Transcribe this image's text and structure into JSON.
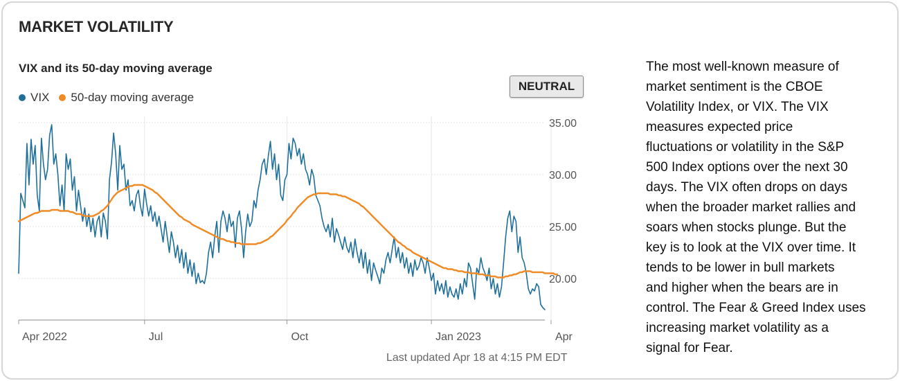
{
  "card": {
    "title": "MARKET VOLATILITY",
    "subtitle": "VIX and its 50-day moving average",
    "badge": "NEUTRAL",
    "updated": "Last updated Apr 18 at 4:15 PM EDT"
  },
  "description_lines": [
    "The most well-known measure of",
    "market sentiment is the CBOE",
    "Volatility Index, or VIX. The VIX",
    "measures expected price",
    "fluctuations or volatility in the S&P",
    "500 Index options over the next 30",
    "days. The VIX often drops on days",
    "when the broader market rallies and",
    "soars when stocks plunge. But the",
    "key is to look at the VIX over time. It",
    "tends to be lower in bull markets",
    "and higher when the bears are in",
    "control. The Fear & Greed Index uses",
    "increasing market volatility as a",
    "signal for Fear."
  ],
  "colors": {
    "vix": "#1f6f9b",
    "ma": "#f08a24",
    "grid": "#e6e6e6"
  },
  "chart_data": {
    "type": "line",
    "title": "VIX and its 50-day moving average",
    "ylim": [
      16,
      35.6
    ],
    "y_ticks": [
      35,
      30,
      25,
      20
    ],
    "y_tick_labels": [
      "35.00",
      "30.00",
      "25.00",
      "20.00"
    ],
    "x_ticks": [
      {
        "label": "Apr 2022",
        "index": 0
      },
      {
        "label": "Jul",
        "index": 61
      },
      {
        "label": "Oct",
        "index": 130
      },
      {
        "label": "Jan 2023",
        "index": 200
      },
      {
        "label": "Apr",
        "index": 258
      }
    ],
    "legend": [
      "VIX",
      "50-day moving average"
    ],
    "series": [
      {
        "name": "VIX",
        "values": [
          20.5,
          28.2,
          27.5,
          26.8,
          33.0,
          29.0,
          33.4,
          31.0,
          32.8,
          28.0,
          26.5,
          33.5,
          31.0,
          29.5,
          30.5,
          33.8,
          34.8,
          31.0,
          32.0,
          30.0,
          27.0,
          29.0,
          26.5,
          32.0,
          30.5,
          31.5,
          28.5,
          29.8,
          26.5,
          28.5,
          27.0,
          25.5,
          26.8,
          25.0,
          26.2,
          24.5,
          25.8,
          24.0,
          25.5,
          26.0,
          24.0,
          26.3,
          25.5,
          23.8,
          29.5,
          31.2,
          34.0,
          32.0,
          28.5,
          32.8,
          30.5,
          31.0,
          28.5,
          29.5,
          27.0,
          27.5,
          26.5,
          28.0,
          28.5,
          27.0,
          26.0,
          28.6,
          27.2,
          26.0,
          27.0,
          25.5,
          26.4,
          25.0,
          26.0,
          24.8,
          23.5,
          25.5,
          24.0,
          22.5,
          24.5,
          23.5,
          22.0,
          23.2,
          21.5,
          22.8,
          21.0,
          22.5,
          20.5,
          21.8,
          20.2,
          21.5,
          19.5,
          20.5,
          19.6,
          19.8,
          19.5,
          20.5,
          22.5,
          23.5,
          22.0,
          24.0,
          25.5,
          22.5,
          25.5,
          26.5,
          25.8,
          24.5,
          26.2,
          25.0,
          25.5,
          23.0,
          25.8,
          26.5,
          24.8,
          22.0,
          24.5,
          26.2,
          25.0,
          25.5,
          27.5,
          26.8,
          28.5,
          29.5,
          31.0,
          31.5,
          30.0,
          31.8,
          33.2,
          30.5,
          32.0,
          29.5,
          31.0,
          28.0,
          27.5,
          29.5,
          30.0,
          33.0,
          31.5,
          33.5,
          33.0,
          31.8,
          32.5,
          31.0,
          32.0,
          30.5,
          30.0,
          29.0,
          30.5,
          29.8,
          28.0,
          27.5,
          27.0,
          25.8,
          25.0,
          24.5,
          25.2,
          24.0,
          25.8,
          23.5,
          24.8,
          24.2,
          23.5,
          22.8,
          24.0,
          23.0,
          22.5,
          23.5,
          22.0,
          23.8,
          22.5,
          21.5,
          22.8,
          21.0,
          22.5,
          20.5,
          21.8,
          19.8,
          21.5,
          20.8,
          20.2,
          19.5,
          21.0,
          20.5,
          21.8,
          22.5,
          21.5,
          22.8,
          24.0,
          22.0,
          23.0,
          21.5,
          22.5,
          21.0,
          22.0,
          20.5,
          21.5,
          20.2,
          21.8,
          20.8,
          21.2,
          22.0,
          21.5,
          20.5,
          22.0,
          21.0,
          19.8,
          20.5,
          18.5,
          19.8,
          18.8,
          19.5,
          18.5,
          19.8,
          18.2,
          19.2,
          18.5,
          18.2,
          19.0,
          18.0,
          19.5,
          18.5,
          20.0,
          19.2,
          21.5,
          21.0,
          19.5,
          18.0,
          21.0,
          20.5,
          22.0,
          21.0,
          20.5,
          19.8,
          21.0,
          19.0,
          20.0,
          18.5,
          19.5,
          18.2,
          19.2,
          21.5,
          24.0,
          25.8,
          26.5,
          24.5,
          26.0,
          25.5,
          22.5,
          24.0,
          22.0,
          21.5,
          20.5,
          19.0,
          18.5,
          19.0,
          18.8,
          19.5,
          19.2,
          17.5,
          17.2,
          17.0
        ]
      },
      {
        "name": "50-day moving average",
        "values": [
          25.5,
          25.6,
          25.7,
          25.8,
          25.9,
          26.0,
          26.1,
          26.2,
          26.3,
          26.3,
          26.4,
          26.5,
          26.5,
          26.5,
          26.5,
          26.5,
          26.6,
          26.6,
          26.6,
          26.6,
          26.5,
          26.5,
          26.5,
          26.5,
          26.5,
          26.4,
          26.4,
          26.3,
          26.2,
          26.2,
          26.2,
          26.1,
          26.0,
          26.0,
          26.0,
          26.0,
          26.0,
          26.1,
          26.2,
          26.3,
          26.5,
          26.6,
          26.8,
          27.0,
          27.3,
          27.6,
          27.9,
          28.1,
          28.3,
          28.4,
          28.5,
          28.6,
          28.7,
          28.8,
          28.9,
          28.9,
          29.0,
          29.0,
          29.0,
          29.0,
          29.0,
          28.9,
          28.8,
          28.7,
          28.6,
          28.5,
          28.3,
          28.2,
          28.0,
          27.8,
          27.6,
          27.4,
          27.2,
          27.0,
          26.8,
          26.6,
          26.4,
          26.2,
          26.0,
          25.9,
          25.7,
          25.6,
          25.5,
          25.4,
          25.2,
          25.1,
          25.0,
          24.9,
          24.8,
          24.7,
          24.6,
          24.5,
          24.4,
          24.3,
          24.2,
          24.1,
          24.0,
          23.9,
          23.8,
          23.8,
          23.7,
          23.6,
          23.6,
          23.5,
          23.5,
          23.4,
          23.4,
          23.4,
          23.3,
          23.3,
          23.3,
          23.3,
          23.3,
          23.3,
          23.3,
          23.3,
          23.4,
          23.4,
          23.5,
          23.6,
          23.7,
          23.8,
          24.0,
          24.1,
          24.3,
          24.5,
          24.7,
          24.9,
          25.1,
          25.3,
          25.6,
          25.8,
          26.0,
          26.3,
          26.5,
          26.8,
          27.0,
          27.2,
          27.4,
          27.6,
          27.8,
          27.9,
          28.0,
          28.1,
          28.1,
          28.2,
          28.2,
          28.2,
          28.2,
          28.2,
          28.2,
          28.1,
          28.1,
          28.1,
          28.1,
          28.0,
          28.0,
          27.9,
          27.9,
          27.8,
          27.7,
          27.6,
          27.5,
          27.4,
          27.3,
          27.2,
          27.0,
          26.9,
          26.7,
          26.5,
          26.3,
          26.1,
          25.9,
          25.7,
          25.5,
          25.3,
          25.1,
          24.9,
          24.7,
          24.5,
          24.3,
          24.1,
          23.9,
          23.7,
          23.5,
          23.4,
          23.2,
          23.1,
          22.9,
          22.8,
          22.7,
          22.5,
          22.4,
          22.3,
          22.2,
          22.1,
          22.0,
          21.9,
          21.8,
          21.7,
          21.6,
          21.5,
          21.4,
          21.3,
          21.2,
          21.1,
          21.0,
          21.0,
          20.9,
          20.9,
          20.9,
          20.8,
          20.8,
          20.7,
          20.7,
          20.7,
          20.6,
          20.6,
          20.6,
          20.5,
          20.5,
          20.5,
          20.5,
          20.4,
          20.4,
          20.4,
          20.3,
          20.3,
          20.3,
          20.2,
          20.2,
          20.2,
          20.1,
          20.1,
          20.1,
          20.1,
          20.2,
          20.2,
          20.3,
          20.3,
          20.4,
          20.4,
          20.5,
          20.6,
          20.6,
          20.7,
          20.7,
          20.7,
          20.7,
          20.6,
          20.6,
          20.6,
          20.6,
          20.6,
          20.6,
          20.5,
          20.5,
          20.5,
          20.5,
          20.5,
          20.4,
          20.4
        ]
      }
    ]
  }
}
